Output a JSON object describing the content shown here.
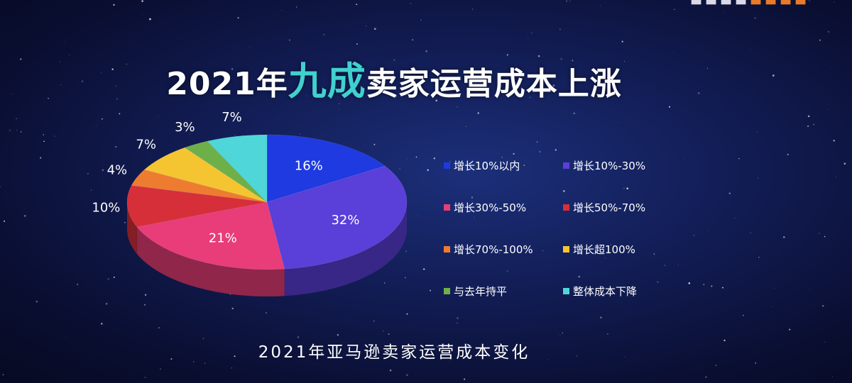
{
  "title": {
    "prefix": "2021年",
    "highlight": "九成",
    "suffix": "卖家运营成本上涨"
  },
  "subtitle": "2021年亚马逊卖家运营成本变化",
  "chart_data": {
    "type": "pie",
    "style": "3d",
    "title": "2021年九成卖家运营成本上涨",
    "caption": "2021年亚马逊卖家运营成本变化",
    "unit": "%",
    "legend_position": "right",
    "slices": [
      {
        "label": "增长10%以内",
        "value": 16,
        "data_label": "16%",
        "color": "#1e3ae0"
      },
      {
        "label": "增长10%-30%",
        "value": 32,
        "data_label": "32%",
        "color": "#5a3fd8"
      },
      {
        "label": "增长30%-50%",
        "value": 21,
        "data_label": "21%",
        "color": "#e83d78"
      },
      {
        "label": "增长50%-70%",
        "value": 10,
        "data_label": "10%",
        "color": "#d62f3a"
      },
      {
        "label": "增长70%-100%",
        "value": 4,
        "data_label": "4%",
        "color": "#ee7c30"
      },
      {
        "label": "增长超100%",
        "value": 7,
        "data_label": "7%",
        "color": "#f5c531"
      },
      {
        "label": "与去年持平",
        "value": 3,
        "data_label": "3%",
        "color": "#6db04a"
      },
      {
        "label": "整体成本下降",
        "value": 7,
        "data_label": "7%",
        "color": "#4fd6d8"
      }
    ]
  }
}
